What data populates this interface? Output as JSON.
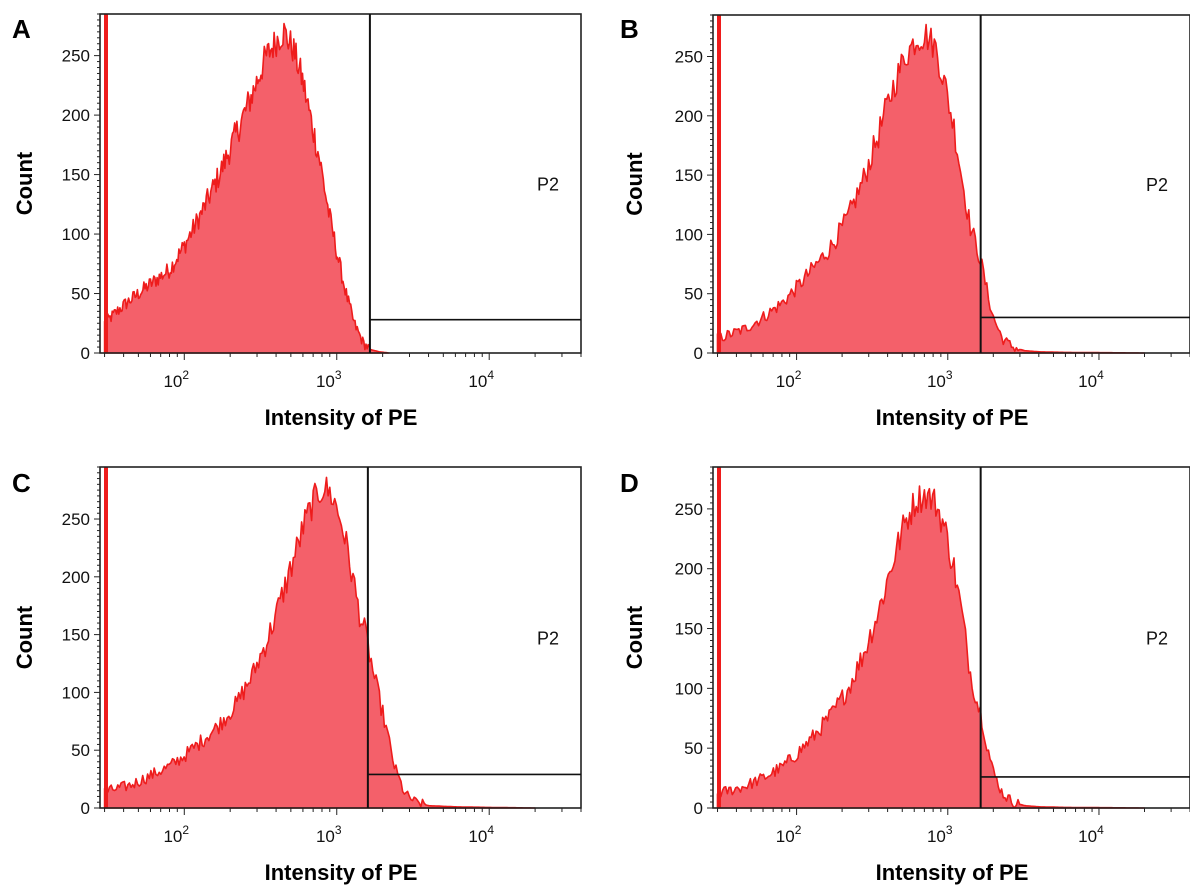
{
  "colors": {
    "fill": "#f4606a",
    "stroke": "#ee1c1c",
    "frame": "#222222",
    "gate": "#111111"
  },
  "chart_data": [
    {
      "panel": "A",
      "type": "area",
      "xlabel": "Intensity of PE",
      "ylabel": "Count",
      "x_scale": "log",
      "xlim": [
        28,
        40000
      ],
      "ylim": [
        0,
        285
      ],
      "x_ticks": [
        {
          "value": 100,
          "base": "10",
          "exp": "2"
        },
        {
          "value": 1000,
          "base": "10",
          "exp": "3"
        },
        {
          "value": 10000,
          "base": "10",
          "exp": "4"
        }
      ],
      "y_ticks": [
        0,
        50,
        100,
        150,
        200,
        250
      ],
      "gate": {
        "label": "P2",
        "x_min": 1650,
        "x_max": 40000,
        "bar_y": 28
      },
      "histogram": {
        "x": [
          30,
          40,
          60,
          80,
          100,
          130,
          170,
          220,
          280,
          340,
          400,
          450,
          520,
          600,
          680,
          780,
          880,
          1000,
          1150,
          1300,
          1500,
          1650,
          1900,
          2200
        ],
        "y": [
          25,
          40,
          58,
          70,
          90,
          118,
          150,
          185,
          218,
          248,
          262,
          270,
          255,
          228,
          195,
          160,
          120,
          85,
          50,
          25,
          8,
          3,
          1,
          0
        ]
      }
    },
    {
      "panel": "B",
      "type": "area",
      "xlabel": "Intensity of PE",
      "ylabel": "Count",
      "x_scale": "log",
      "xlim": [
        28,
        40000
      ],
      "ylim": [
        0,
        285
      ],
      "x_ticks": [
        {
          "value": 100,
          "base": "10",
          "exp": "2"
        },
        {
          "value": 1000,
          "base": "10",
          "exp": "3"
        },
        {
          "value": 10000,
          "base": "10",
          "exp": "4"
        }
      ],
      "y_ticks": [
        0,
        50,
        100,
        150,
        200,
        250
      ],
      "gate": {
        "label": "P2",
        "x_min": 1650,
        "x_max": 40000,
        "bar_y": 30
      },
      "histogram": {
        "x": [
          30,
          45,
          60,
          80,
          100,
          130,
          170,
          220,
          280,
          350,
          430,
          520,
          620,
          720,
          830,
          950,
          1100,
          1250,
          1400,
          1550,
          1650,
          1800,
          2000,
          2300,
          2700,
          3200,
          4000,
          6000,
          10000,
          20000
        ],
        "y": [
          12,
          20,
          30,
          42,
          55,
          72,
          90,
          115,
          148,
          185,
          222,
          250,
          265,
          268,
          258,
          228,
          190,
          145,
          108,
          90,
          78,
          55,
          30,
          12,
          5,
          2,
          1,
          0.5,
          0.3,
          0
        ],
        "peak": [
          {
            "x": 700,
            "y": 270
          }
        ]
      }
    },
    {
      "panel": "C",
      "type": "area",
      "xlabel": "Intensity of PE",
      "ylabel": "Count",
      "x_scale": "log",
      "xlim": [
        28,
        40000
      ],
      "ylim": [
        0,
        295
      ],
      "x_ticks": [
        {
          "value": 100,
          "base": "10",
          "exp": "2"
        },
        {
          "value": 1000,
          "base": "10",
          "exp": "3"
        },
        {
          "value": 10000,
          "base": "10",
          "exp": "4"
        }
      ],
      "y_ticks": [
        0,
        50,
        100,
        150,
        200,
        250
      ],
      "gate": {
        "label": "P2",
        "x_min": 1600,
        "x_max": 40000,
        "bar_y": 29
      },
      "histogram": {
        "x": [
          30,
          45,
          60,
          80,
          100,
          130,
          170,
          220,
          280,
          350,
          430,
          520,
          620,
          720,
          830,
          950,
          1100,
          1250,
          1400,
          1550,
          1600,
          1750,
          1900,
          2100,
          2400,
          2800,
          3300,
          4000,
          6000,
          10000,
          20000
        ],
        "y": [
          14,
          20,
          28,
          36,
          45,
          58,
          72,
          90,
          115,
          145,
          180,
          215,
          248,
          268,
          278,
          268,
          242,
          205,
          170,
          150,
          140,
          115,
          95,
          70,
          35,
          12,
          5,
          2,
          1,
          0.5,
          0
        ]
      }
    },
    {
      "panel": "D",
      "type": "area",
      "xlabel": "Intensity of PE",
      "ylabel": "Count",
      "x_scale": "log",
      "xlim": [
        28,
        40000
      ],
      "ylim": [
        0,
        285
      ],
      "x_ticks": [
        {
          "value": 100,
          "base": "10",
          "exp": "2"
        },
        {
          "value": 1000,
          "base": "10",
          "exp": "3"
        },
        {
          "value": 10000,
          "base": "10",
          "exp": "4"
        }
      ],
      "y_ticks": [
        0,
        50,
        100,
        150,
        200,
        250
      ],
      "gate": {
        "label": "P2",
        "x_min": 1650,
        "x_max": 40000,
        "bar_y": 26
      },
      "histogram": {
        "x": [
          30,
          45,
          60,
          80,
          100,
          130,
          170,
          220,
          280,
          350,
          430,
          520,
          620,
          720,
          830,
          950,
          1100,
          1250,
          1400,
          1550,
          1650,
          1800,
          2000,
          2300,
          2700,
          3200,
          4000,
          6000,
          10000,
          20000
        ],
        "y": [
          12,
          18,
          25,
          34,
          45,
          60,
          78,
          100,
          130,
          165,
          205,
          238,
          258,
          262,
          255,
          235,
          200,
          160,
          115,
          90,
          80,
          55,
          30,
          12,
          5,
          2,
          1,
          0.5,
          0.3,
          0
        ]
      }
    }
  ]
}
